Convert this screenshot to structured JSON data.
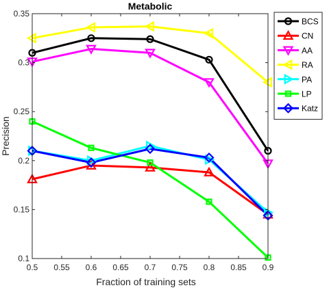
{
  "chart_data": {
    "type": "line",
    "title": "Metabolic",
    "xlabel": "Fraction of training sets",
    "ylabel": "Precision",
    "xlim": [
      0.5,
      0.9
    ],
    "ylim": [
      0.1,
      0.35
    ],
    "x_ticks": [
      "0.5",
      "0.55",
      "0.6",
      "0.65",
      "0.7",
      "0.75",
      "0.8",
      "0.85",
      "0.9"
    ],
    "y_ticks": [
      "0.1",
      "0.15",
      "0.2",
      "0.25",
      "0.3",
      "0.35"
    ],
    "x": [
      0.5,
      0.6,
      0.7,
      0.8,
      0.9
    ],
    "grid": false,
    "legend_position": "top-right",
    "series": [
      {
        "name": "BCS",
        "color": "#000000",
        "marker": "circle",
        "values": [
          0.31,
          0.325,
          0.324,
          0.303,
          0.21
        ]
      },
      {
        "name": "CN",
        "color": "#ff0000",
        "marker": "triangle-up",
        "values": [
          0.181,
          0.195,
          0.193,
          0.188,
          0.145
        ]
      },
      {
        "name": "AA",
        "color": "#ff00ff",
        "marker": "triangle-down",
        "values": [
          0.301,
          0.314,
          0.31,
          0.28,
          0.197
        ]
      },
      {
        "name": "RA",
        "color": "#ffff00",
        "marker": "triangle-left",
        "values": [
          0.325,
          0.336,
          0.337,
          0.33,
          0.28
        ]
      },
      {
        "name": "PA",
        "color": "#00ffff",
        "marker": "triangle-right",
        "values": [
          0.21,
          0.2,
          0.215,
          0.201,
          0.147
        ]
      },
      {
        "name": "LP",
        "color": "#00ff00",
        "marker": "square",
        "values": [
          0.24,
          0.213,
          0.198,
          0.158,
          0.101
        ]
      },
      {
        "name": "Katz",
        "color": "#0000ff",
        "marker": "diamond",
        "values": [
          0.21,
          0.198,
          0.212,
          0.203,
          0.144
        ]
      }
    ]
  }
}
